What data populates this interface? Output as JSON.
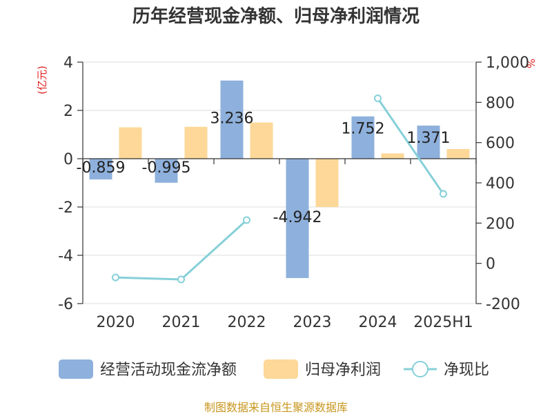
{
  "chart_data": {
    "type": "bar",
    "title": "历年经营现金净额、归母净利润情况",
    "categories": [
      "2020",
      "2021",
      "2022",
      "2023",
      "2024",
      "2025H1"
    ],
    "left_axis": {
      "unit": "(亿元)",
      "ylim": [
        -6,
        4
      ],
      "ticks": [
        "4",
        "2",
        "0",
        "-2",
        "-4",
        "-6"
      ]
    },
    "right_axis": {
      "unit": "%",
      "ylim": [
        -200,
        1000
      ],
      "ticks": [
        "1,000",
        "800",
        "600",
        "400",
        "200",
        "0",
        "-200"
      ]
    },
    "series": [
      {
        "name": "经营活动现金流净额",
        "kind": "bar",
        "axis": "left",
        "color": "#8eb0dc",
        "values": [
          -0.859,
          -0.995,
          3.236,
          -4.942,
          1.752,
          1.371
        ],
        "labels": [
          "-0.859",
          "-0.995",
          "3.236",
          "-4.942",
          "1.752",
          "1.371"
        ]
      },
      {
        "name": "归母净利润",
        "kind": "bar",
        "axis": "left",
        "color": "#fdd898",
        "values": [
          1.3,
          1.32,
          1.5,
          -2.0,
          0.22,
          0.4
        ]
      },
      {
        "name": "净现比",
        "kind": "line",
        "axis": "right",
        "color": "#86d0d8",
        "values": [
          -70,
          -80,
          215,
          null,
          820,
          345
        ]
      }
    ],
    "grid": true,
    "legend_position": "bottom"
  },
  "source": "制图数据来自恒生聚源数据库"
}
